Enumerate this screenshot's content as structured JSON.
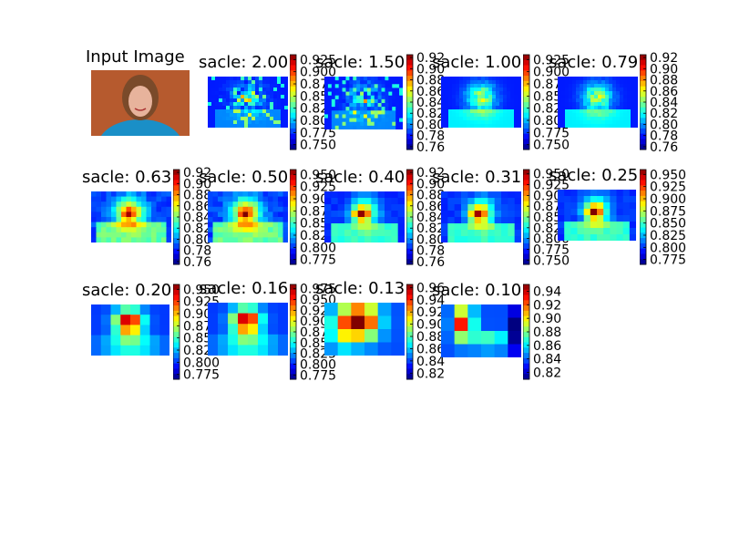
{
  "figure": {
    "background": "#ffffff"
  },
  "input_panel": {
    "title": "Input Image"
  },
  "colormap": "jet",
  "chart_data": [
    {
      "type": "heatmap",
      "title": "sacle: 2.00",
      "colorbar_ticks": [
        "0.925",
        "0.900",
        "0.875",
        "0.850",
        "0.825",
        "0.800",
        "0.775",
        "0.750"
      ],
      "vmin": 0.74,
      "vmax": 0.935,
      "pattern": "fine-edges"
    },
    {
      "type": "heatmap",
      "title": "sacle: 1.50",
      "colorbar_ticks": [
        "0.92",
        "0.90",
        "0.88",
        "0.86",
        "0.84",
        "0.82",
        "0.80",
        "0.78",
        "0.76"
      ],
      "vmin": 0.755,
      "vmax": 0.925,
      "pattern": "fine-edges"
    },
    {
      "type": "heatmap",
      "title": "sacle: 1.00",
      "colorbar_ticks": [
        "0.925",
        "0.900",
        "0.875",
        "0.850",
        "0.825",
        "0.800",
        "0.775",
        "0.750"
      ],
      "vmin": 0.74,
      "vmax": 0.935,
      "pattern": "face-detail"
    },
    {
      "type": "heatmap",
      "title": "sacle: 0.79",
      "colorbar_ticks": [
        "0.92",
        "0.90",
        "0.88",
        "0.86",
        "0.84",
        "0.82",
        "0.80",
        "0.78",
        "0.76"
      ],
      "vmin": 0.755,
      "vmax": 0.925,
      "pattern": "face-detail"
    },
    {
      "type": "heatmap",
      "title": "sacle: 0.63",
      "colorbar_ticks": [
        "0.92",
        "0.90",
        "0.88",
        "0.86",
        "0.84",
        "0.82",
        "0.80",
        "0.78",
        "0.76"
      ],
      "vmin": 0.755,
      "vmax": 0.925,
      "pattern": "face-medium"
    },
    {
      "type": "heatmap",
      "title": "sacle: 0.50",
      "colorbar_ticks": [
        "0.950",
        "0.925",
        "0.900",
        "0.875",
        "0.850",
        "0.825",
        "0.800",
        "0.775"
      ],
      "vmin": 0.765,
      "vmax": 0.96,
      "pattern": "face-medium"
    },
    {
      "type": "heatmap",
      "title": "sacle: 0.40",
      "colorbar_ticks": [
        "0.92",
        "0.90",
        "0.88",
        "0.86",
        "0.84",
        "0.82",
        "0.80",
        "0.78",
        "0.76"
      ],
      "vmin": 0.755,
      "vmax": 0.925,
      "pattern": "face-blob"
    },
    {
      "type": "heatmap",
      "title": "sacle: 0.31",
      "colorbar_ticks": [
        "0.950",
        "0.925",
        "0.900",
        "0.875",
        "0.850",
        "0.825",
        "0.800",
        "0.775",
        "0.750"
      ],
      "vmin": 0.74,
      "vmax": 0.96,
      "pattern": "face-blob"
    },
    {
      "type": "heatmap",
      "title": "sacle: 0.25",
      "colorbar_ticks": [
        "0.950",
        "0.925",
        "0.900",
        "0.875",
        "0.850",
        "0.825",
        "0.800",
        "0.775"
      ],
      "vmin": 0.765,
      "vmax": 0.96,
      "pattern": "face-blob"
    },
    {
      "type": "heatmap",
      "title": "sacle: 0.20",
      "colorbar_ticks": [
        "0.950",
        "0.925",
        "0.900",
        "0.875",
        "0.850",
        "0.825",
        "0.800",
        "0.775"
      ],
      "vmin": 0.765,
      "vmax": 0.96,
      "pattern": "coarse"
    },
    {
      "type": "heatmap",
      "title": "sacle: 0.16",
      "colorbar_ticks": [
        "0.975",
        "0.950",
        "0.925",
        "0.900",
        "0.875",
        "0.850",
        "0.825",
        "0.800",
        "0.775"
      ],
      "vmin": 0.765,
      "vmax": 0.985,
      "pattern": "coarse"
    },
    {
      "type": "heatmap",
      "title": "sacle: 0.13",
      "colorbar_ticks": [
        "0.96",
        "0.94",
        "0.92",
        "0.90",
        "0.88",
        "0.86",
        "0.84",
        "0.82"
      ],
      "vmin": 0.81,
      "vmax": 0.965,
      "pattern": "very-coarse"
    },
    {
      "type": "heatmap",
      "title": "sacle: 0.10",
      "colorbar_ticks": [
        "0.94",
        "0.92",
        "0.90",
        "0.88",
        "0.86",
        "0.84",
        "0.82"
      ],
      "vmin": 0.81,
      "vmax": 0.95,
      "pattern": "very-coarse-side"
    }
  ]
}
